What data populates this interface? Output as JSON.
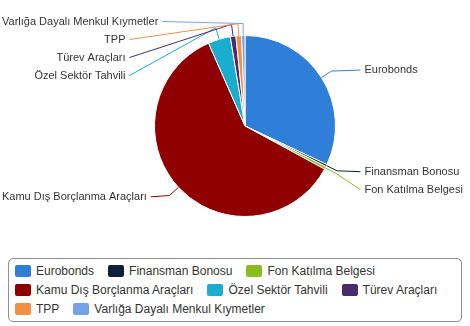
{
  "chart_data": {
    "type": "pie",
    "categories": [
      "Eurobonds",
      "Finansman Bonosu",
      "Fon Katılma Belgesi",
      "Kamu Dış Borçlanma Araçları",
      "Özel Sektör Tahvili",
      "Türev Araçları",
      "TPP",
      "Varlığa Dayalı Menkul Kıymetler"
    ],
    "values": [
      32,
      0.4,
      0.5,
      60.5,
      4,
      1,
      1,
      0.6
    ],
    "colors": [
      "#2f7ed8",
      "#0d233a",
      "#8bbc21",
      "#910000",
      "#1aadce",
      "#492970",
      "#f28f43",
      "#77a1e5"
    ],
    "legend": "bottom"
  }
}
